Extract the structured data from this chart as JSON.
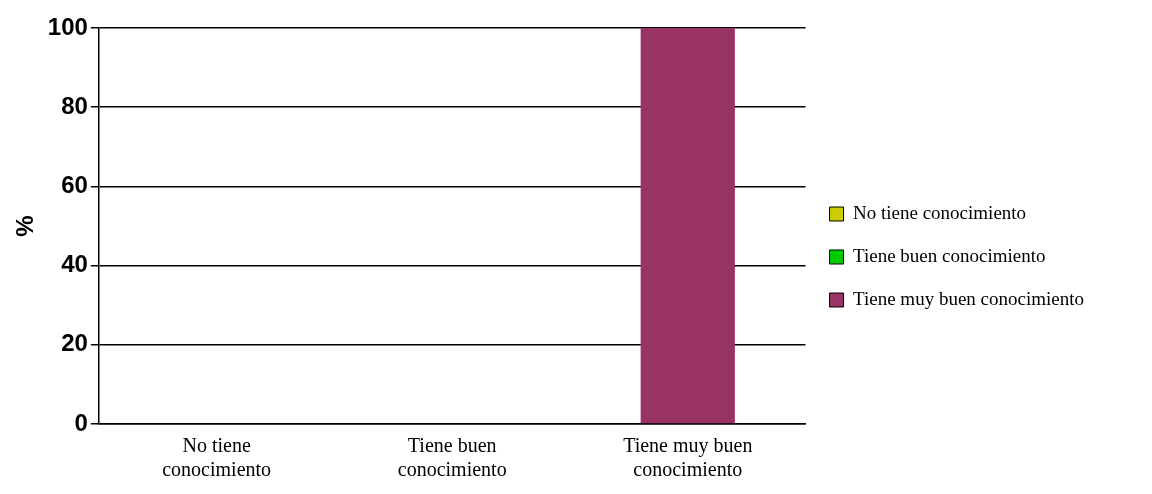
{
  "chart_data": {
    "type": "bar",
    "categories": [
      "No tiene conocimiento",
      "Tiene buen conocimiento",
      "Tiene muy buen conocimiento"
    ],
    "series": [
      {
        "name": "No tiene conocimiento",
        "color": "#cccc00",
        "values": [
          0,
          null,
          null
        ]
      },
      {
        "name": "Tiene buen conocimiento",
        "color": "#00cc00",
        "values": [
          null,
          0,
          null
        ]
      },
      {
        "name": "Tiene muy buen conocimiento",
        "color": "#993366",
        "values": [
          null,
          null,
          100
        ]
      }
    ],
    "ylabel": "%",
    "ylim": [
      0,
      100
    ],
    "yticks": [
      0,
      20,
      40,
      60,
      80,
      100
    ],
    "grid": "y",
    "legend": "right"
  }
}
